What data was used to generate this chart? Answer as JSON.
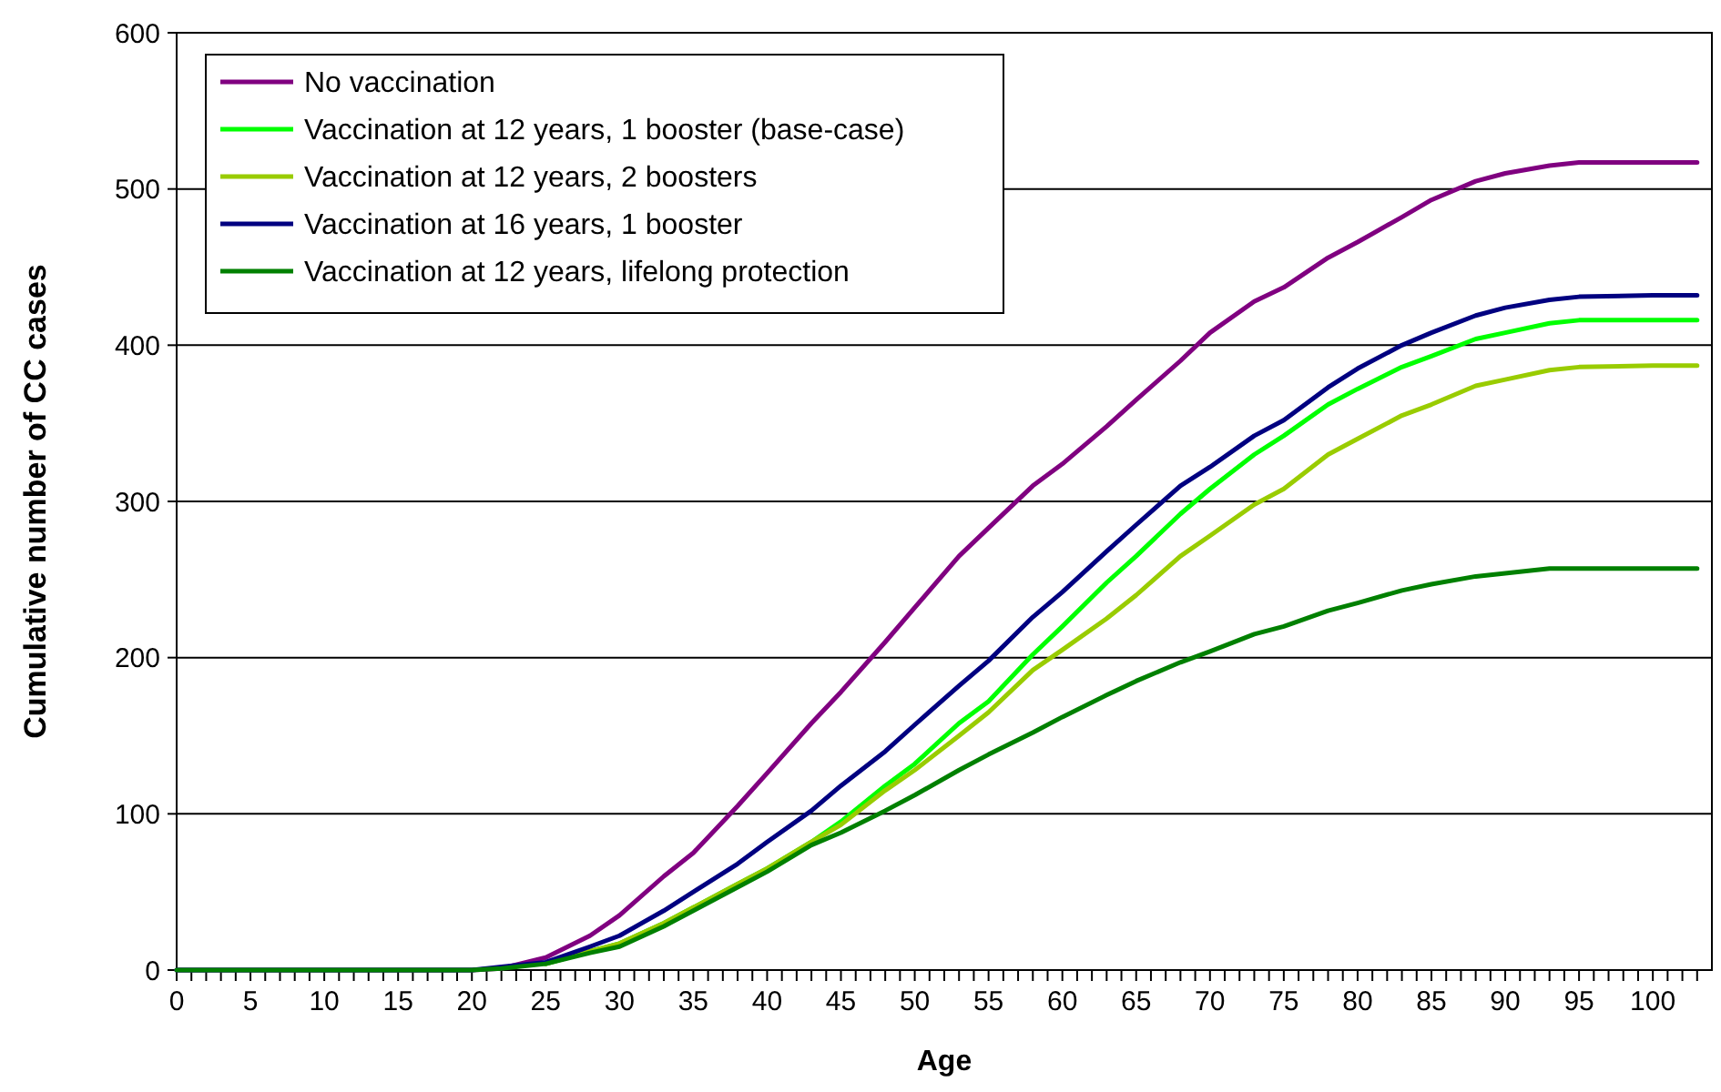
{
  "chart_data": {
    "type": "line",
    "xlabel": "Age",
    "ylabel": "Cumulative number of CC cases",
    "x": [
      0,
      20,
      22,
      25,
      28,
      30,
      33,
      35,
      38,
      40,
      43,
      45,
      48,
      50,
      53,
      55,
      58,
      60,
      63,
      65,
      68,
      70,
      73,
      75,
      78,
      80,
      83,
      85,
      88,
      90,
      93,
      95,
      100,
      103
    ],
    "series": [
      {
        "name": "No vaccination",
        "color": "#800080",
        "values": [
          0,
          0,
          1,
          8,
          22,
          35,
          60,
          75,
          105,
          126,
          158,
          178,
          210,
          232,
          265,
          283,
          310,
          324,
          348,
          365,
          390,
          408,
          428,
          437,
          456,
          466,
          482,
          493,
          505,
          510,
          515,
          517,
          517,
          517
        ]
      },
      {
        "name": "Vaccination at 12 years, 1 booster (base-case)",
        "color": "#00ff00",
        "values": [
          null,
          null,
          null,
          4,
          12,
          17,
          30,
          40,
          55,
          65,
          82,
          95,
          118,
          132,
          158,
          172,
          202,
          220,
          248,
          265,
          292,
          308,
          330,
          342,
          362,
          372,
          386,
          393,
          404,
          408,
          414,
          416,
          416,
          416
        ]
      },
      {
        "name": "Vaccination at 12 years, 2 boosters",
        "color": "#99cc00",
        "values": [
          null,
          null,
          null,
          4,
          12,
          17,
          30,
          40,
          55,
          65,
          82,
          93,
          115,
          128,
          150,
          165,
          192,
          205,
          225,
          240,
          265,
          278,
          298,
          308,
          330,
          340,
          355,
          362,
          374,
          378,
          384,
          386,
          387,
          387
        ]
      },
      {
        "name": "Vaccination at 16 years, 1 booster",
        "color": "#000080",
        "values": [
          0,
          0,
          2,
          5,
          15,
          22,
          38,
          50,
          68,
          82,
          102,
          118,
          140,
          157,
          182,
          198,
          226,
          242,
          268,
          285,
          310,
          322,
          342,
          352,
          373,
          385,
          400,
          408,
          419,
          424,
          429,
          431,
          432,
          432
        ]
      },
      {
        "name": "Vaccination at 12 years, lifelong protection",
        "color": "#008000",
        "values": [
          0,
          0,
          1,
          4,
          11,
          15,
          28,
          38,
          53,
          63,
          80,
          88,
          102,
          112,
          128,
          138,
          152,
          162,
          176,
          185,
          197,
          204,
          215,
          220,
          230,
          235,
          243,
          247,
          252,
          254,
          257,
          257,
          257,
          257
        ]
      }
    ],
    "xlim": [
      0,
      104
    ],
    "xticks": [
      0,
      {
        "value": 1,
        "label": null
      },
      {
        "value": 2,
        "label": null
      },
      {
        "value": 3,
        "label": null
      },
      {
        "value": 4,
        "label": null
      },
      5,
      {
        "value": 6,
        "label": null
      },
      {
        "value": 7,
        "label": null
      },
      {
        "value": 8,
        "label": null
      },
      {
        "value": 9,
        "label": null
      },
      10,
      {
        "value": 11,
        "label": null
      },
      {
        "value": 12,
        "label": null
      },
      {
        "value": 13,
        "label": null
      },
      {
        "value": 14,
        "label": null
      },
      15,
      {
        "value": 16,
        "label": null
      },
      {
        "value": 17,
        "label": null
      },
      {
        "value": 18,
        "label": null
      },
      {
        "value": 19,
        "label": null
      },
      20,
      {
        "value": 21,
        "label": null
      },
      {
        "value": 22,
        "label": null
      },
      {
        "value": 23,
        "label": null
      },
      {
        "value": 24,
        "label": null
      },
      25,
      {
        "value": 26,
        "label": null
      },
      {
        "value": 27,
        "label": null
      },
      {
        "value": 28,
        "label": null
      },
      {
        "value": 29,
        "label": null
      },
      30,
      {
        "value": 31,
        "label": null
      },
      {
        "value": 32,
        "label": null
      },
      {
        "value": 33,
        "label": null
      },
      {
        "value": 34,
        "label": null
      },
      35,
      {
        "value": 36,
        "label": null
      },
      {
        "value": 37,
        "label": null
      },
      {
        "value": 38,
        "label": null
      },
      {
        "value": 39,
        "label": null
      },
      40,
      {
        "value": 41,
        "label": null
      },
      {
        "value": 42,
        "label": null
      },
      {
        "value": 43,
        "label": null
      },
      {
        "value": 44,
        "label": null
      },
      45,
      {
        "value": 46,
        "label": null
      },
      {
        "value": 47,
        "label": null
      },
      {
        "value": 48,
        "label": null
      },
      {
        "value": 49,
        "label": null
      },
      50,
      {
        "value": 51,
        "label": null
      },
      {
        "value": 52,
        "label": null
      },
      {
        "value": 53,
        "label": null
      },
      {
        "value": 54,
        "label": null
      },
      55,
      {
        "value": 56,
        "label": null
      },
      {
        "value": 57,
        "label": null
      },
      {
        "value": 58,
        "label": null
      },
      {
        "value": 59,
        "label": null
      },
      60,
      {
        "value": 61,
        "label": null
      },
      {
        "value": 62,
        "label": null
      },
      {
        "value": 63,
        "label": null
      },
      {
        "value": 64,
        "label": null
      },
      65,
      {
        "value": 66,
        "label": null
      },
      {
        "value": 67,
        "label": null
      },
      {
        "value": 68,
        "label": null
      },
      {
        "value": 69,
        "label": null
      },
      70,
      {
        "value": 71,
        "label": null
      },
      {
        "value": 72,
        "label": null
      },
      {
        "value": 73,
        "label": null
      },
      {
        "value": 74,
        "label": null
      },
      75,
      {
        "value": 76,
        "label": null
      },
      {
        "value": 77,
        "label": null
      },
      {
        "value": 78,
        "label": null
      },
      {
        "value": 79,
        "label": null
      },
      80,
      {
        "value": 81,
        "label": null
      },
      {
        "value": 82,
        "label": null
      },
      {
        "value": 83,
        "label": null
      },
      {
        "value": 84,
        "label": null
      },
      85,
      {
        "value": 86,
        "label": null
      },
      {
        "value": 87,
        "label": null
      },
      {
        "value": 88,
        "label": null
      },
      {
        "value": 89,
        "label": null
      },
      90,
      {
        "value": 91,
        "label": null
      },
      {
        "value": 92,
        "label": null
      },
      {
        "value": 93,
        "label": null
      },
      {
        "value": 94,
        "label": null
      },
      95,
      {
        "value": 96,
        "label": null
      },
      {
        "value": 97,
        "label": null
      },
      {
        "value": 98,
        "label": null
      },
      {
        "value": 99,
        "label": null
      },
      100,
      {
        "value": 101,
        "label": null
      },
      {
        "value": 102,
        "label": null
      },
      {
        "value": 103,
        "label": null
      }
    ],
    "ylim": [
      0,
      600
    ],
    "yticks": [
      0,
      100,
      200,
      300,
      400,
      500,
      600
    ],
    "grid": "y",
    "legend": "top left",
    "marker": "none",
    "line_style": "solid"
  }
}
